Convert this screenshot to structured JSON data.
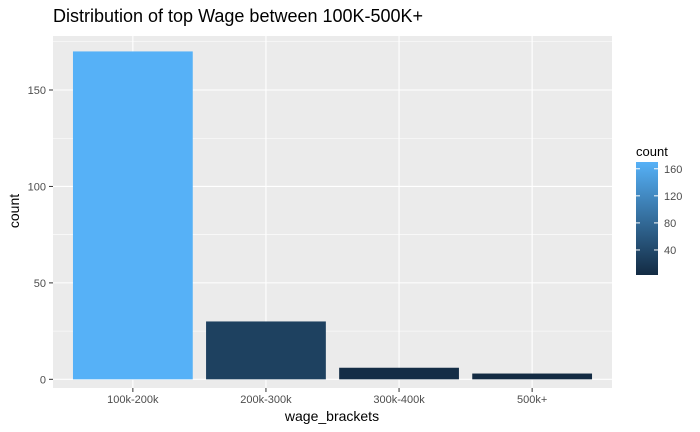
{
  "chart_data": {
    "type": "bar",
    "title": "Distribution of top Wage between 100K-500K+",
    "xlabel": "wage_brackets",
    "ylabel": "count",
    "categories": [
      "100k-200k",
      "200k-300k",
      "300k-400k",
      "500k+"
    ],
    "values": [
      170,
      30,
      6,
      3
    ],
    "ylim": [
      -4.5,
      178
    ],
    "yticks": [
      0,
      50,
      100,
      150
    ],
    "grid": true,
    "legend": {
      "title": "count",
      "placement": "right",
      "ticks": [
        40,
        80,
        120,
        160
      ],
      "range": [
        3,
        170
      ]
    },
    "colors": {
      "low": "#132B43",
      "high": "#56B1F7",
      "panel_background": "#EBEBEB",
      "grid": "#FFFFFF"
    }
  }
}
